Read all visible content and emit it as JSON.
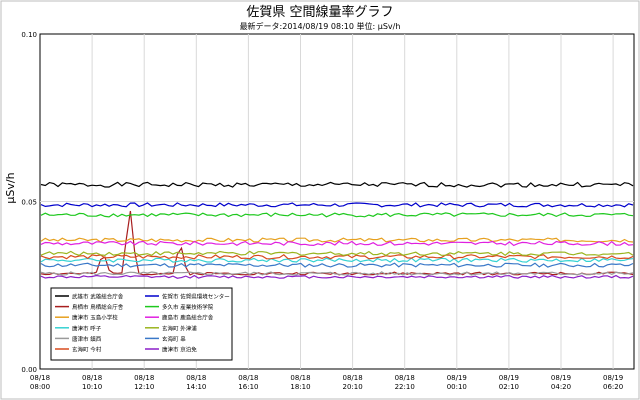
{
  "chart_data": {
    "type": "line",
    "title": "佐賀県 空間線量率グラフ",
    "subtitle": "最新データ:2014/08/19 08:10 単位: μSv/h",
    "ylabel": "μSv/h",
    "xlabel": "",
    "ylim": [
      0,
      0.1
    ],
    "y_ticks": [
      "0.00",
      "0.05",
      "0.10"
    ],
    "x_ticks": [
      [
        "08/18",
        "08:00"
      ],
      [
        "08/18",
        "10:10"
      ],
      [
        "08/18",
        "12:10"
      ],
      [
        "08/18",
        "14:10"
      ],
      [
        "08/18",
        "16:10"
      ],
      [
        "08/18",
        "18:10"
      ],
      [
        "08/18",
        "20:10"
      ],
      [
        "08/18",
        "22:10"
      ],
      [
        "08/19",
        "00:10"
      ],
      [
        "08/19",
        "02:10"
      ],
      [
        "08/19",
        "04:20"
      ],
      [
        "08/19",
        "06:20"
      ]
    ],
    "grid": true,
    "legend_position": "bottom-left",
    "series": [
      {
        "name": "武雄市 武雄総合庁舎",
        "color": "#000000",
        "level": 0.055,
        "noise": 0.0007,
        "seed": 1
      },
      {
        "name": "鳥栖市 鳥栖総合庁舎",
        "color": "#a81e1e",
        "level": 0.0285,
        "noise": 0.0004,
        "seed": 2,
        "spikes": [
          [
            0.15,
            0.049
          ],
          [
            0.235,
            0.038
          ],
          [
            0.105,
            0.035
          ]
        ]
      },
      {
        "name": "唐津市 玉島小学校",
        "color": "#e6a01e",
        "level": 0.0385,
        "noise": 0.0006,
        "seed": 3
      },
      {
        "name": "唐津市 呼子",
        "color": "#36d2d2",
        "level": 0.0325,
        "noise": 0.0006,
        "seed": 4
      },
      {
        "name": "唐津市 鎮西",
        "color": "#9a9a9a",
        "level": 0.0285,
        "noise": 0.0005,
        "seed": 5
      },
      {
        "name": "玄海町 今村",
        "color": "#d84a1e",
        "level": 0.0335,
        "noise": 0.0006,
        "seed": 6
      },
      {
        "name": "佐賀市 佐賀県環境センター",
        "color": "#0000cc",
        "level": 0.049,
        "noise": 0.0006,
        "seed": 7
      },
      {
        "name": "多久市 産業技術学院",
        "color": "#1ec81e",
        "level": 0.046,
        "noise": 0.0006,
        "seed": 8
      },
      {
        "name": "鹿島市 鹿島総合庁舎",
        "color": "#e020e0",
        "level": 0.0375,
        "noise": 0.0006,
        "seed": 9
      },
      {
        "name": "玄海町 外津浦",
        "color": "#9ab41e",
        "level": 0.0345,
        "noise": 0.0006,
        "seed": 10
      },
      {
        "name": "玄海町 串",
        "color": "#3a78c8",
        "level": 0.031,
        "noise": 0.0006,
        "seed": 11
      },
      {
        "name": "唐津市 京泊免",
        "color": "#8a1ec8",
        "level": 0.0275,
        "noise": 0.0004,
        "seed": 12
      }
    ]
  }
}
